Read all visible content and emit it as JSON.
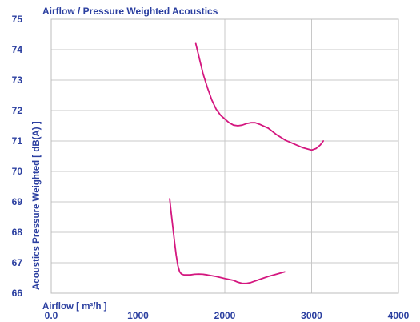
{
  "chart_data": {
    "type": "line",
    "title": "Airflow / Pressure Weighted Acoustics",
    "xlabel": "Airflow [ m³/h ]",
    "ylabel": "Acoustics Pressure Weighted [ dB(A) ]",
    "xlim": [
      0,
      4000
    ],
    "ylim": [
      66,
      75
    ],
    "x_ticks": [
      "0.0",
      "1000",
      "2000",
      "3000",
      "4000"
    ],
    "y_ticks": [
      "66",
      "67",
      "68",
      "69",
      "70",
      "71",
      "72",
      "73",
      "74",
      "75"
    ],
    "grid": true,
    "colors": {
      "series": "#d4177f",
      "text": "#2b3fa0",
      "grid": "#c8c8c8"
    },
    "series": [
      {
        "x": [
          1665,
          1700,
          1750,
          1800,
          1850,
          1900,
          1950,
          2000,
          2050,
          2100,
          2150,
          2200,
          2250,
          2300,
          2350,
          2400,
          2500,
          2600,
          2700,
          2800,
          2900,
          3000,
          3050,
          3100,
          3135
        ],
        "y": [
          74.2,
          73.8,
          73.2,
          72.75,
          72.35,
          72.05,
          71.85,
          71.72,
          71.6,
          71.52,
          71.5,
          71.52,
          71.57,
          71.6,
          71.6,
          71.55,
          71.42,
          71.2,
          71.02,
          70.9,
          70.78,
          70.7,
          70.75,
          70.87,
          71.0
        ]
      },
      {
        "x": [
          1365,
          1380,
          1400,
          1420,
          1440,
          1460,
          1480,
          1500,
          1530,
          1560,
          1600,
          1650,
          1700,
          1750,
          1800,
          1900,
          2000,
          2100,
          2150,
          2200,
          2250,
          2300,
          2400,
          2500,
          2600,
          2690
        ],
        "y": [
          69.1,
          68.7,
          68.2,
          67.7,
          67.25,
          66.9,
          66.7,
          66.63,
          66.6,
          66.6,
          66.6,
          66.62,
          66.63,
          66.62,
          66.6,
          66.55,
          66.48,
          66.42,
          66.36,
          66.32,
          66.32,
          66.35,
          66.45,
          66.55,
          66.63,
          66.7
        ]
      }
    ]
  }
}
